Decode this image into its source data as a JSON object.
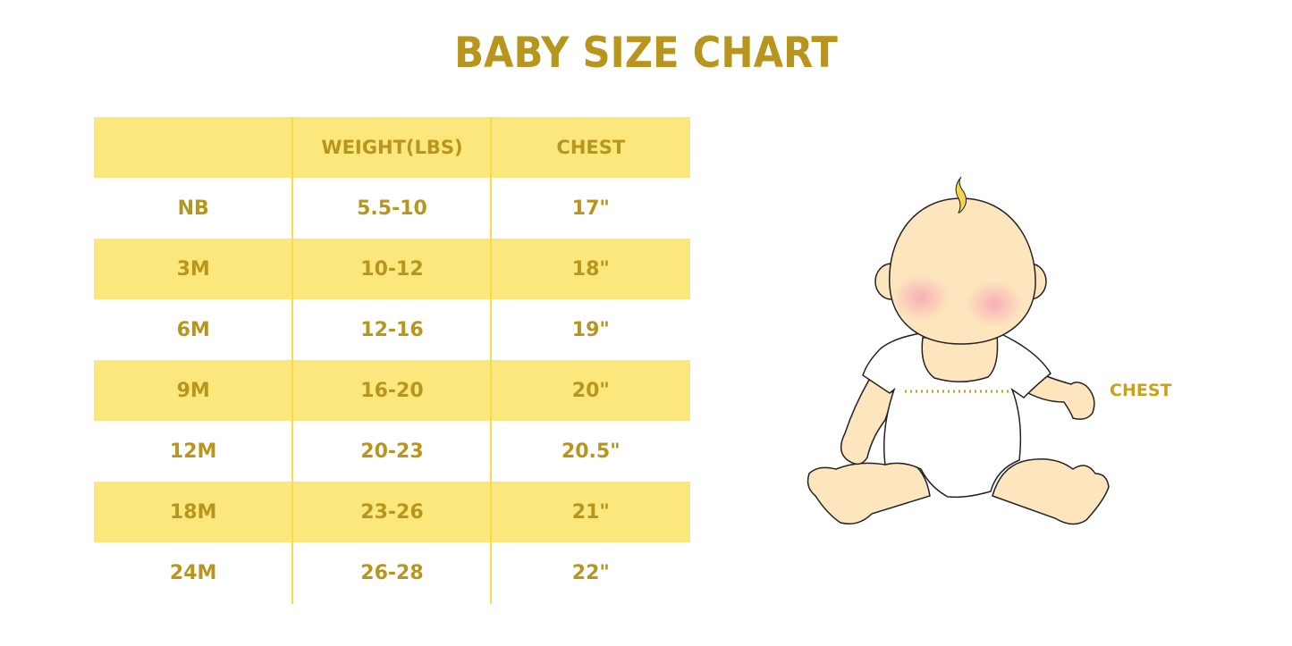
{
  "title": "BABY SIZE CHART",
  "table": {
    "headers": [
      "",
      "WEIGHT(LBS)",
      "CHEST"
    ],
    "rows": [
      [
        "NB",
        "5.5-10",
        "17\""
      ],
      [
        "3M",
        "10-12",
        "18\""
      ],
      [
        "6M",
        "12-16",
        "19\""
      ],
      [
        "9M",
        "16-20",
        "20\""
      ],
      [
        "12M",
        "20-23",
        "20.5\""
      ],
      [
        "18M",
        "23-26",
        "21\""
      ],
      [
        "24M",
        "26-28",
        "22\""
      ]
    ]
  },
  "illustration": {
    "label": "CHEST",
    "icon": "baby-measurement-illustration"
  },
  "colors": {
    "text": "#B8961E",
    "row_highlight": "#FCE77C",
    "divider": "#FCD94A"
  }
}
